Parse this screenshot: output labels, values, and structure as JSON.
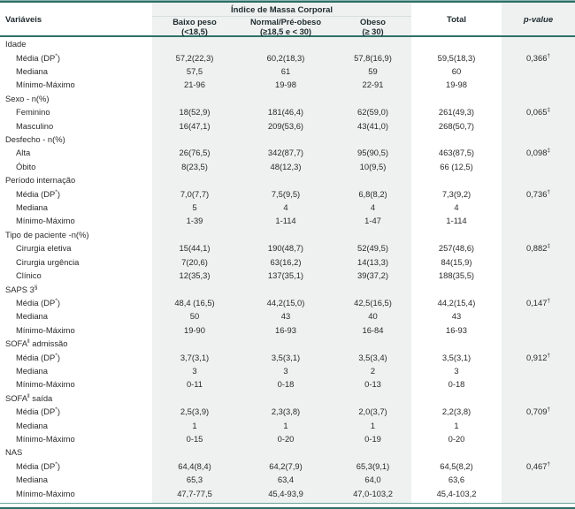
{
  "colors": {
    "accent_teal": "#2c6e67",
    "column_shade": "#eef1f0",
    "text": "#2a2a2a"
  },
  "table": {
    "header": {
      "variables_label": "Variáveis",
      "group_label": "Índice de Massa Corporal",
      "group_columns": [
        {
          "line1": "Baixo peso",
          "line2": "(<18,5)"
        },
        {
          "line1": "Normal/Pré-obeso",
          "line2": "(≥18,5 e < 30)"
        },
        {
          "line1": "Obeso",
          "line2": "(≥ 30)"
        }
      ],
      "total_label": "Total",
      "pvalue_label": "p-value"
    },
    "sections": [
      {
        "label": {
          "pre": "Idade",
          "sup": "",
          "post": ""
        },
        "rows": [
          {
            "label": {
              "pre": "Média (DP",
              "sup": "*",
              "post": ")"
            },
            "values": [
              "57,2(22,3)",
              "60,2(18,3)",
              "57,8(16,9)",
              "59,5(18,3)"
            ],
            "p": {
              "val": "0,366",
              "sup": "†"
            }
          },
          {
            "label": {
              "pre": "Mediana",
              "sup": "",
              "post": ""
            },
            "values": [
              "57,5",
              "61",
              "59",
              "60"
            ],
            "p": {
              "val": "",
              "sup": ""
            }
          },
          {
            "label": {
              "pre": "Mínimo-Máximo",
              "sup": "",
              "post": ""
            },
            "values": [
              "21-96",
              "19-98",
              "22-91",
              "19-98"
            ],
            "p": {
              "val": "",
              "sup": ""
            }
          }
        ]
      },
      {
        "label": {
          "pre": "Sexo - n(%)",
          "sup": "",
          "post": ""
        },
        "rows": [
          {
            "label": {
              "pre": "Feminino",
              "sup": "",
              "post": ""
            },
            "values": [
              "18(52,9)",
              "181(46,4)",
              "62(59,0)",
              "261(49,3)"
            ],
            "p": {
              "val": "0,065",
              "sup": "‡"
            }
          },
          {
            "label": {
              "pre": "Masculino",
              "sup": "",
              "post": ""
            },
            "values": [
              "16(47,1)",
              "209(53,6)",
              "43(41,0)",
              "268(50,7)"
            ],
            "p": {
              "val": "",
              "sup": ""
            }
          }
        ]
      },
      {
        "label": {
          "pre": "Desfecho - n(%)",
          "sup": "",
          "post": ""
        },
        "rows": [
          {
            "label": {
              "pre": "Alta",
              "sup": "",
              "post": ""
            },
            "values": [
              "26(76,5)",
              "342(87,7)",
              "95(90,5)",
              "463(87,5)"
            ],
            "p": {
              "val": "0,098",
              "sup": "‡"
            }
          },
          {
            "label": {
              "pre": "Óbito",
              "sup": "",
              "post": ""
            },
            "values": [
              "8(23,5)",
              "48(12,3)",
              "10(9,5)",
              "66 (12,5)"
            ],
            "p": {
              "val": "",
              "sup": ""
            }
          }
        ]
      },
      {
        "label": {
          "pre": "Período internação",
          "sup": "",
          "post": ""
        },
        "rows": [
          {
            "label": {
              "pre": "Média (DP",
              "sup": "*",
              "post": ")"
            },
            "values": [
              "7,0(7,7)",
              "7,5(9,5)",
              "6,8(8,2)",
              "7,3(9,2)"
            ],
            "p": {
              "val": "0,736",
              "sup": "†"
            }
          },
          {
            "label": {
              "pre": "Mediana",
              "sup": "",
              "post": ""
            },
            "values": [
              "5",
              "4",
              "4",
              "4"
            ],
            "p": {
              "val": "",
              "sup": ""
            }
          },
          {
            "label": {
              "pre": "Mínimo-Máximo",
              "sup": "",
              "post": ""
            },
            "values": [
              "1-39",
              "1-114",
              "1-47",
              "1-114"
            ],
            "p": {
              "val": "",
              "sup": ""
            }
          }
        ]
      },
      {
        "label": {
          "pre": "Tipo de paciente -n(%)",
          "sup": "",
          "post": ""
        },
        "rows": [
          {
            "label": {
              "pre": "Cirurgia eletiva",
              "sup": "",
              "post": ""
            },
            "values": [
              "15(44,1)",
              "190(48,7)",
              "52(49,5)",
              "257(48,6)"
            ],
            "p": {
              "val": "0,882",
              "sup": "‡"
            }
          },
          {
            "label": {
              "pre": "Cirurgia urgência",
              "sup": "",
              "post": ""
            },
            "values": [
              "7(20,6)",
              "63(16,2)",
              "14(13,3)",
              "84(15,9)"
            ],
            "p": {
              "val": "",
              "sup": ""
            }
          },
          {
            "label": {
              "pre": "Clínico",
              "sup": "",
              "post": ""
            },
            "values": [
              "12(35,3)",
              "137(35,1)",
              "39(37,2)",
              "188(35,5)"
            ],
            "p": {
              "val": "",
              "sup": ""
            }
          }
        ]
      },
      {
        "label": {
          "pre": "SAPS 3",
          "sup": "§",
          "post": ""
        },
        "rows": [
          {
            "label": {
              "pre": "Média (DP",
              "sup": "*",
              "post": ")"
            },
            "values": [
              "48,4 (16,5)",
              "44,2(15,0)",
              "42,5(16,5)",
              "44,2(15,4)"
            ],
            "p": {
              "val": "0,147",
              "sup": "†"
            }
          },
          {
            "label": {
              "pre": "Mediana",
              "sup": "",
              "post": ""
            },
            "values": [
              "50",
              "43",
              "40",
              "43"
            ],
            "p": {
              "val": "",
              "sup": ""
            }
          },
          {
            "label": {
              "pre": "Mínimo-Máximo",
              "sup": "",
              "post": ""
            },
            "values": [
              "19-90",
              "16-93",
              "16-84",
              "16-93"
            ],
            "p": {
              "val": "",
              "sup": ""
            }
          }
        ]
      },
      {
        "label": {
          "pre": "SOFA",
          "sup": "‖",
          "post": " admissão"
        },
        "rows": [
          {
            "label": {
              "pre": "Média (DP",
              "sup": "*",
              "post": ")"
            },
            "values": [
              "3,7(3,1)",
              "3,5(3,1)",
              "3,5(3,4)",
              "3,5(3,1)"
            ],
            "p": {
              "val": "0,912",
              "sup": "†"
            }
          },
          {
            "label": {
              "pre": "Mediana",
              "sup": "",
              "post": ""
            },
            "values": [
              "3",
              "3",
              "2",
              "3"
            ],
            "p": {
              "val": "",
              "sup": ""
            }
          },
          {
            "label": {
              "pre": "Mínimo-Máximo",
              "sup": "",
              "post": ""
            },
            "values": [
              "0-11",
              "0-18",
              "0-13",
              "0-18"
            ],
            "p": {
              "val": "",
              "sup": ""
            }
          }
        ]
      },
      {
        "label": {
          "pre": "SOFA",
          "sup": "‖",
          "post": " saída"
        },
        "rows": [
          {
            "label": {
              "pre": "Média (DP",
              "sup": "*",
              "post": ")"
            },
            "values": [
              "2,5(3,9)",
              "2,3(3,8)",
              "2,0(3,7)",
              "2,2(3,8)"
            ],
            "p": {
              "val": "0,709",
              "sup": "†"
            }
          },
          {
            "label": {
              "pre": "Mediana",
              "sup": "",
              "post": ""
            },
            "values": [
              "1",
              "1",
              "1",
              "1"
            ],
            "p": {
              "val": "",
              "sup": ""
            }
          },
          {
            "label": {
              "pre": "Mínimo-Máximo",
              "sup": "",
              "post": ""
            },
            "values": [
              "0-15",
              "0-20",
              "0-19",
              "0-20"
            ],
            "p": {
              "val": "",
              "sup": ""
            }
          }
        ]
      },
      {
        "label": {
          "pre": "NAS",
          "sup": "",
          "post": ""
        },
        "rows": [
          {
            "label": {
              "pre": "Média (DP",
              "sup": "*",
              "post": ")"
            },
            "values": [
              "64,4(8,4)",
              "64,2(7,9)",
              "65,3(9,1)",
              "64,5(8,2)"
            ],
            "p": {
              "val": "0,467",
              "sup": "†"
            }
          },
          {
            "label": {
              "pre": "Mediana",
              "sup": "",
              "post": ""
            },
            "values": [
              "65,3",
              "63,4",
              "64,0",
              "63,6"
            ],
            "p": {
              "val": "",
              "sup": ""
            }
          },
          {
            "label": {
              "pre": "Mínimo-Máximo",
              "sup": "",
              "post": ""
            },
            "values": [
              "47,7-77,5",
              "45,4-93,9",
              "47,0-103,2",
              "45,4-103,2"
            ],
            "p": {
              "val": "",
              "sup": ""
            }
          }
        ]
      }
    ]
  }
}
